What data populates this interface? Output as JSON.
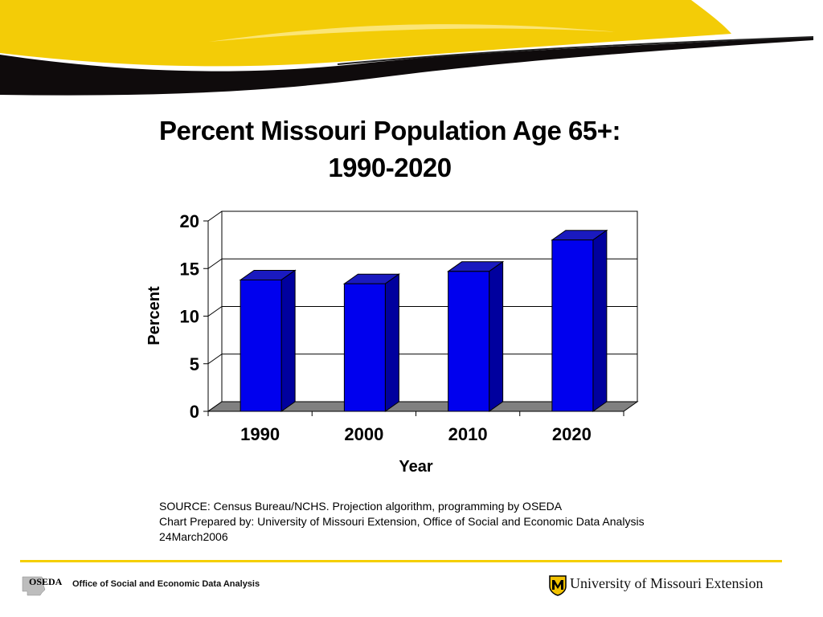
{
  "chart_data": {
    "type": "bar",
    "title": [
      "Percent Missouri Population Age 65+:",
      "1990-2020"
    ],
    "categories": [
      "1990",
      "2000",
      "2010",
      "2020"
    ],
    "values": [
      13.8,
      13.4,
      14.7,
      18.0
    ],
    "xlabel": "Year",
    "ylabel": "Percent",
    "ylim": [
      0,
      20
    ],
    "yticks": [
      "0",
      "5",
      "10",
      "15",
      "20"
    ],
    "grid": true,
    "style": "3d",
    "colors": {
      "bar_front": "#0000ee",
      "bar_side": "#00009e",
      "bar_top": "#1a1abf",
      "floor": "#808080"
    }
  },
  "source": {
    "lines": [
      "SOURCE:  Census Bureau/NCHS. Projection algorithm, programming by OSEDA",
      "Chart Prepared by: University of Missouri Extension, Office of Social and Economic Data Analysis",
      "24March2006"
    ]
  },
  "footer": {
    "logo_text": "OSEDA",
    "left_text": "Office of Social and Economic Data Analysis",
    "right_text": "University of Missouri Extension",
    "line_color": "#f5cf00"
  }
}
